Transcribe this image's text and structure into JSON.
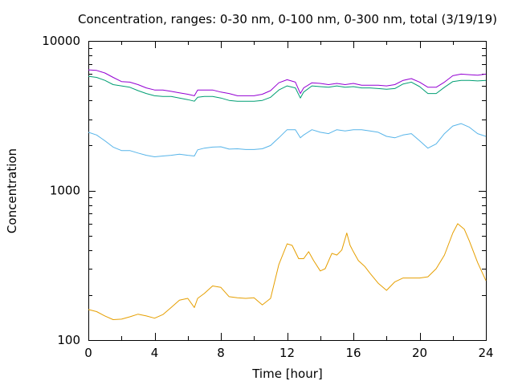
{
  "chart_data": {
    "type": "line",
    "title": "Concentration, ranges: 0-30 nm, 0-100 nm, 0-300 nm, total (3/19/19)",
    "xlabel": "Time [hour]",
    "ylabel": "Concentration",
    "xlim": [
      0,
      24
    ],
    "ylim": [
      100,
      10000
    ],
    "y_scale": "log",
    "grid": false,
    "legend": "none",
    "x_ticks": [
      0,
      4,
      8,
      12,
      16,
      20,
      24
    ],
    "x_tick_labels": [
      "0",
      "4",
      "8",
      "12",
      "16",
      "20",
      "24"
    ],
    "y_ticks": [
      100,
      1000,
      10000
    ],
    "y_tick_labels": [
      "100",
      "1000",
      "10000"
    ],
    "series": [
      {
        "color": "#e69f00",
        "x": [
          0,
          0.5,
          1,
          1.5,
          2,
          2.5,
          3,
          3.5,
          4,
          4.5,
          5,
          5.5,
          6,
          6.4,
          6.6,
          7,
          7.5,
          8,
          8.5,
          9,
          9.5,
          10,
          10.5,
          11,
          11.5,
          12,
          12.3,
          12.7,
          13,
          13.3,
          13.6,
          14,
          14.3,
          14.7,
          15,
          15.3,
          15.6,
          15.8,
          16,
          16.3,
          16.7,
          17,
          17.5,
          18,
          18.5,
          19,
          19.5,
          20,
          20.5,
          21,
          21.5,
          22,
          22.3,
          22.7,
          23,
          23.5,
          24
        ],
        "y": [
          160,
          155,
          145,
          137,
          138,
          143,
          149,
          145,
          140,
          148,
          165,
          185,
          190,
          165,
          190,
          205,
          230,
          225,
          195,
          192,
          190,
          192,
          172,
          190,
          320,
          440,
          430,
          350,
          350,
          390,
          340,
          290,
          300,
          380,
          370,
          400,
          520,
          430,
          390,
          340,
          310,
          280,
          240,
          215,
          245,
          260,
          260,
          260,
          265,
          300,
          370,
          520,
          600,
          550,
          460,
          330,
          250
        ]
      },
      {
        "color": "#56b4e9",
        "x": [
          0,
          0.5,
          1,
          1.5,
          2,
          2.5,
          3,
          3.5,
          4,
          4.5,
          5,
          5.5,
          6,
          6.4,
          6.6,
          7,
          7.5,
          8,
          8.5,
          9,
          9.5,
          10,
          10.5,
          11,
          11.5,
          12,
          12.5,
          12.8,
          13,
          13.5,
          14,
          14.5,
          15,
          15.5,
          16,
          16.5,
          17,
          17.5,
          18,
          18.5,
          19,
          19.5,
          20,
          20.5,
          21,
          21.5,
          22,
          22.5,
          23,
          23.5,
          24
        ],
        "y": [
          2450,
          2350,
          2150,
          1950,
          1850,
          1850,
          1780,
          1720,
          1680,
          1700,
          1720,
          1750,
          1720,
          1700,
          1870,
          1920,
          1950,
          1960,
          1890,
          1900,
          1880,
          1880,
          1900,
          2000,
          2250,
          2550,
          2550,
          2250,
          2350,
          2550,
          2450,
          2400,
          2550,
          2500,
          2550,
          2550,
          2500,
          2450,
          2300,
          2250,
          2350,
          2400,
          2150,
          1920,
          2050,
          2400,
          2700,
          2800,
          2650,
          2400,
          2300
        ]
      },
      {
        "color": "#009e73",
        "x": [
          0,
          0.5,
          1,
          1.5,
          2,
          2.5,
          3,
          3.5,
          4,
          4.5,
          5,
          5.5,
          6,
          6.4,
          6.6,
          7,
          7.5,
          8,
          8.5,
          9,
          9.5,
          10,
          10.5,
          11,
          11.5,
          12,
          12.5,
          12.8,
          13,
          13.5,
          14,
          14.5,
          15,
          15.5,
          16,
          16.5,
          17,
          17.5,
          18,
          18.5,
          19,
          19.5,
          20,
          20.5,
          21,
          21.5,
          22,
          22.5,
          23,
          23.5,
          24
        ],
        "y": [
          5800,
          5700,
          5450,
          5100,
          5000,
          4900,
          4650,
          4450,
          4300,
          4250,
          4250,
          4150,
          4050,
          3950,
          4200,
          4250,
          4250,
          4150,
          4000,
          3950,
          3950,
          3950,
          4000,
          4200,
          4700,
          5000,
          4850,
          4150,
          4550,
          5000,
          4950,
          4900,
          5000,
          4900,
          4950,
          4850,
          4850,
          4800,
          4750,
          4800,
          5150,
          5300,
          4950,
          4450,
          4450,
          4900,
          5350,
          5450,
          5450,
          5400,
          5450
        ]
      },
      {
        "color": "#9400d3",
        "x": [
          0,
          0.5,
          1,
          1.5,
          2,
          2.5,
          3,
          3.5,
          4,
          4.5,
          5,
          5.5,
          6,
          6.4,
          6.6,
          7,
          7.5,
          8,
          8.5,
          9,
          9.5,
          10,
          10.5,
          11,
          11.5,
          12,
          12.5,
          12.8,
          13,
          13.5,
          14,
          14.5,
          15,
          15.5,
          16,
          16.5,
          17,
          17.5,
          18,
          18.5,
          19,
          19.5,
          20,
          20.5,
          21,
          21.5,
          22,
          22.5,
          23,
          23.5,
          24
        ],
        "y": [
          6400,
          6350,
          6100,
          5700,
          5350,
          5300,
          5100,
          4850,
          4700,
          4700,
          4600,
          4500,
          4400,
          4300,
          4700,
          4700,
          4700,
          4550,
          4450,
          4300,
          4300,
          4300,
          4400,
          4650,
          5250,
          5500,
          5300,
          4450,
          4850,
          5250,
          5200,
          5100,
          5200,
          5100,
          5200,
          5050,
          5050,
          5050,
          5000,
          5100,
          5450,
          5600,
          5300,
          4900,
          4900,
          5300,
          5850,
          6000,
          5950,
          5900,
          6000
        ]
      }
    ]
  }
}
